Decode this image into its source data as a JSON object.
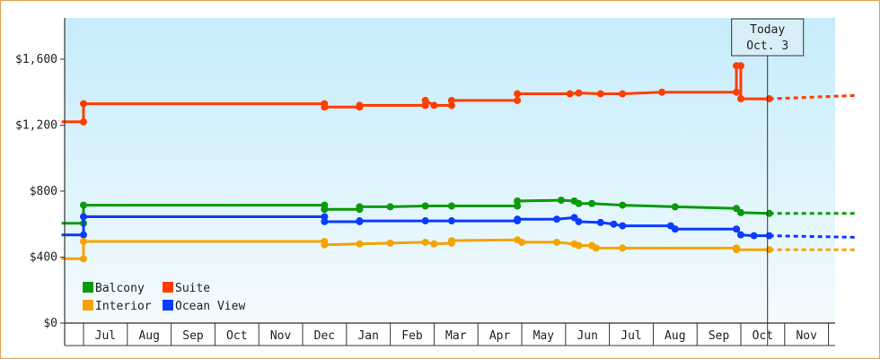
{
  "chart_data": {
    "type": "line",
    "title": "",
    "xlabel": "",
    "ylabel": "",
    "ylim": [
      0,
      1850
    ],
    "y_ticks": [
      {
        "value": 0,
        "label": "$0"
      },
      {
        "value": 400,
        "label": "$400"
      },
      {
        "value": 800,
        "label": "$800"
      },
      {
        "value": 1200,
        "label": "$1,200"
      },
      {
        "value": 1600,
        "label": "$1,600"
      }
    ],
    "months": [
      "Jul",
      "Aug",
      "Sep",
      "Oct",
      "Nov",
      "Dec",
      "Jan",
      "Feb",
      "Mar",
      "Apr",
      "May",
      "Jun",
      "Jul",
      "Aug",
      "Sep",
      "Oct",
      "Nov"
    ],
    "grid": false,
    "legend_position": "bottom-left",
    "today_marker": {
      "line1": "Today",
      "line2": "Oct. 3",
      "month_pos": 15.65
    },
    "colors": {
      "background_top": "#c6ecfb",
      "background_bottom": "#f4fbfe",
      "frame": "#e0a55a",
      "today_line": "#333333"
    },
    "series": [
      {
        "name": "Suite",
        "color": "#ff3d00",
        "points": [
          [
            -0.5,
            1220
          ],
          [
            0,
            1220
          ],
          [
            0,
            1330
          ],
          [
            5.5,
            1330
          ],
          [
            5.5,
            1310
          ],
          [
            6.3,
            1310
          ],
          [
            6.3,
            1320
          ],
          [
            7.8,
            1320
          ],
          [
            7.8,
            1350
          ],
          [
            8.0,
            1320
          ],
          [
            8.4,
            1320
          ],
          [
            8.4,
            1350
          ],
          [
            9.9,
            1350
          ],
          [
            9.9,
            1390
          ],
          [
            11.1,
            1390
          ],
          [
            11.3,
            1395
          ],
          [
            11.8,
            1390
          ],
          [
            12.3,
            1390
          ],
          [
            13.2,
            1400
          ],
          [
            14.9,
            1400
          ],
          [
            14.9,
            1560
          ],
          [
            15.0,
            1560
          ],
          [
            15.0,
            1360
          ],
          [
            15.65,
            1360
          ]
        ],
        "forecast": [
          [
            15.65,
            1360
          ],
          [
            17.6,
            1380
          ]
        ]
      },
      {
        "name": "Balcony",
        "color": "#0a9a0a",
        "points": [
          [
            -0.5,
            605
          ],
          [
            0,
            605
          ],
          [
            0,
            715
          ],
          [
            5.5,
            715
          ],
          [
            5.5,
            690
          ],
          [
            6.3,
            690
          ],
          [
            6.3,
            705
          ],
          [
            7.0,
            705
          ],
          [
            7.8,
            710
          ],
          [
            8.4,
            710
          ],
          [
            9.9,
            710
          ],
          [
            9.9,
            740
          ],
          [
            10.9,
            745
          ],
          [
            11.2,
            740
          ],
          [
            11.3,
            725
          ],
          [
            11.6,
            725
          ],
          [
            12.3,
            715
          ],
          [
            13.5,
            705
          ],
          [
            14.9,
            695
          ],
          [
            15.0,
            670
          ],
          [
            15.65,
            665
          ]
        ],
        "forecast": [
          [
            15.65,
            665
          ],
          [
            17.6,
            665
          ]
        ]
      },
      {
        "name": "Ocean View",
        "color": "#0b3bff",
        "points": [
          [
            -0.5,
            535
          ],
          [
            0,
            535
          ],
          [
            0,
            645
          ],
          [
            5.5,
            645
          ],
          [
            5.5,
            615
          ],
          [
            6.3,
            615
          ],
          [
            6.3,
            620
          ],
          [
            7.8,
            620
          ],
          [
            8.4,
            620
          ],
          [
            9.9,
            620
          ],
          [
            9.9,
            630
          ],
          [
            10.8,
            630
          ],
          [
            11.2,
            640
          ],
          [
            11.3,
            615
          ],
          [
            11.8,
            610
          ],
          [
            12.1,
            600
          ],
          [
            12.3,
            590
          ],
          [
            13.4,
            590
          ],
          [
            13.5,
            570
          ],
          [
            14.9,
            570
          ],
          [
            15.0,
            535
          ],
          [
            15.3,
            530
          ],
          [
            15.65,
            530
          ]
        ],
        "forecast": [
          [
            15.65,
            530
          ],
          [
            17.6,
            520
          ]
        ]
      },
      {
        "name": "Interior",
        "color": "#f5a300",
        "points": [
          [
            -0.5,
            390
          ],
          [
            0,
            390
          ],
          [
            0,
            495
          ],
          [
            5.5,
            495
          ],
          [
            5.5,
            475
          ],
          [
            6.3,
            480
          ],
          [
            7.0,
            485
          ],
          [
            7.8,
            490
          ],
          [
            8.0,
            480
          ],
          [
            8.4,
            485
          ],
          [
            8.4,
            500
          ],
          [
            9.9,
            505
          ],
          [
            10.0,
            490
          ],
          [
            10.8,
            490
          ],
          [
            11.2,
            480
          ],
          [
            11.3,
            470
          ],
          [
            11.6,
            470
          ],
          [
            11.7,
            455
          ],
          [
            12.3,
            455
          ],
          [
            14.9,
            455
          ],
          [
            14.9,
            445
          ],
          [
            15.65,
            445
          ]
        ],
        "forecast": [
          [
            15.65,
            445
          ],
          [
            17.6,
            445
          ]
        ]
      }
    ],
    "legend": [
      {
        "name": "Balcony",
        "color": "#0a9a0a"
      },
      {
        "name": "Suite",
        "color": "#ff3d00"
      },
      {
        "name": "Interior",
        "color": "#f5a300"
      },
      {
        "name": "Ocean View",
        "color": "#0b3bff"
      }
    ]
  }
}
